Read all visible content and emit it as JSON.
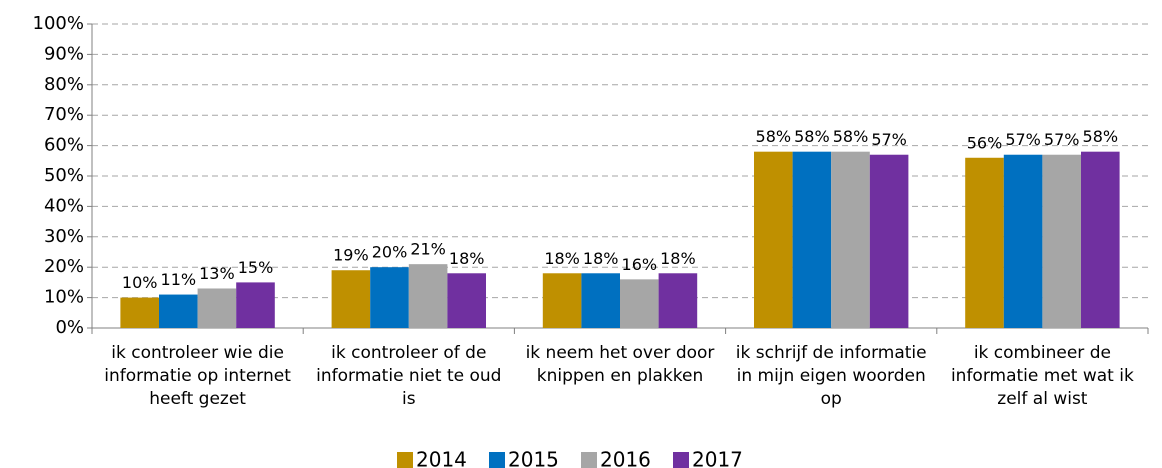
{
  "chart_data": {
    "type": "bar",
    "categories": [
      "ik controleer wie die informatie op internet heeft gezet",
      "ik controleer of de informatie niet te oud is",
      "ik neem het over door knippen en plakken",
      "ik schrijf de informatie in mijn eigen woorden op",
      "ik combineer de informatie met wat ik zelf al wist"
    ],
    "series": [
      {
        "name": "2014",
        "color": "#bf9000",
        "values": [
          10,
          19,
          18,
          58,
          56
        ],
        "value_labels": [
          "10%",
          "19%",
          "18%",
          "58%",
          "56%"
        ]
      },
      {
        "name": "2015",
        "color": "#0070c0",
        "values": [
          11,
          20,
          18,
          58,
          57
        ],
        "value_labels": [
          "11%",
          "20%",
          "18%",
          "58%",
          "57%"
        ]
      },
      {
        "name": "2016",
        "color": "#a6a6a6",
        "values": [
          13,
          21,
          16,
          58,
          57
        ],
        "value_labels": [
          "13%",
          "21%",
          "16%",
          "58%",
          "57%"
        ]
      },
      {
        "name": "2017",
        "color": "#7030a0",
        "values": [
          15,
          18,
          18,
          57,
          58
        ],
        "value_labels": [
          "15%",
          "18%",
          "18%",
          "57%",
          "58%"
        ]
      }
    ],
    "ylim": [
      0,
      100
    ],
    "yticks": [
      {
        "value": 0,
        "label": "0%"
      },
      {
        "value": 10,
        "label": "10%"
      },
      {
        "value": 20,
        "label": "20%"
      },
      {
        "value": 30,
        "label": "30%"
      },
      {
        "value": 40,
        "label": "40%"
      },
      {
        "value": 50,
        "label": "50%"
      },
      {
        "value": 60,
        "label": "60%"
      },
      {
        "value": 70,
        "label": "70%"
      },
      {
        "value": 80,
        "label": "80%"
      },
      {
        "value": 90,
        "label": "90%"
      },
      {
        "value": 100,
        "label": "100%"
      }
    ],
    "grid": true,
    "legend": "bottom"
  }
}
